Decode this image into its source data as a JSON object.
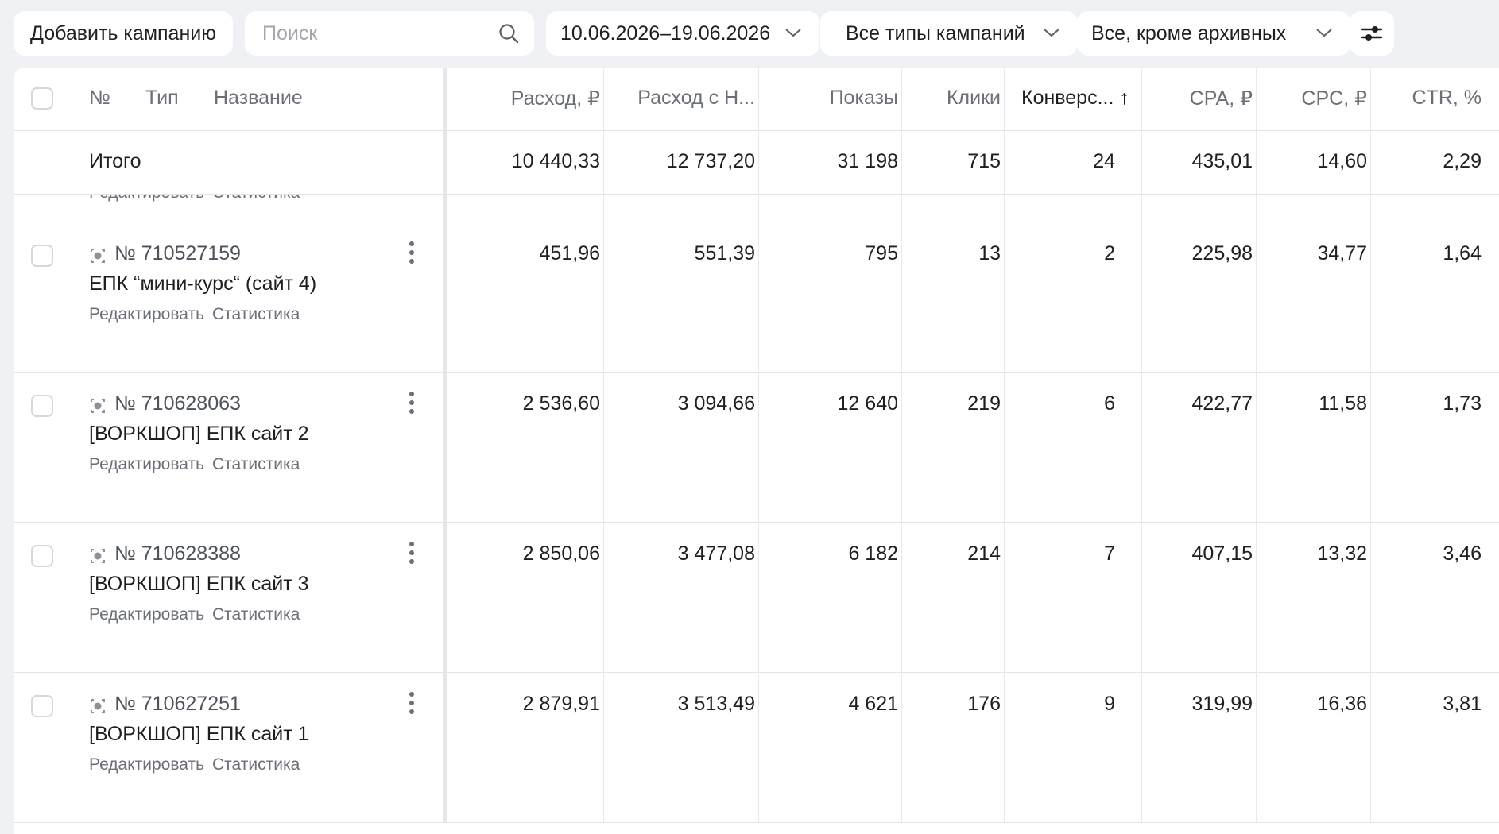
{
  "toolbar": {
    "add_label": "Добавить кампанию",
    "search_placeholder": "Поиск",
    "search_value": "",
    "date_range": "10.06.2026–19.06.2026",
    "campaign_types": "Все типы кампаний",
    "archive_filter": "Все, кроме архивных"
  },
  "table": {
    "headers": {
      "num": "№",
      "type": "Тип",
      "name": "Название",
      "spend": "Расход, ₽",
      "spend_vat": "Расход с Н...",
      "impressions": "Показы",
      "clicks": "Клики",
      "conversions": "Конверс...",
      "conversions_sort": "↑",
      "cpa": "CPA, ₽",
      "cpc": "CPC, ₽",
      "ctr": "CTR, %"
    },
    "total": {
      "label": "Итого",
      "spend": "10 440,33",
      "spend_vat": "12 737,20",
      "impressions": "31 198",
      "clicks": "715",
      "conversions": "24",
      "cpa": "435,01",
      "cpc": "14,60",
      "ctr": "2,29"
    },
    "partial_row": {
      "edit": "Редактировать",
      "stats": "Статистика"
    },
    "rows": [
      {
        "id": "№ 710527159",
        "name": "ЕПК “мини-курс“ (сайт 4)",
        "edit": "Редактировать",
        "stats": "Статистика",
        "spend": "451,96",
        "spend_vat": "551,39",
        "impressions": "795",
        "clicks": "13",
        "conversions": "2",
        "cpa": "225,98",
        "cpc": "34,77",
        "ctr": "1,64"
      },
      {
        "id": "№ 710628063",
        "name": "[ВОРКШОП] ЕПК сайт 2",
        "edit": "Редактировать",
        "stats": "Статистика",
        "spend": "2 536,60",
        "spend_vat": "3 094,66",
        "impressions": "12 640",
        "clicks": "219",
        "conversions": "6",
        "cpa": "422,77",
        "cpc": "11,58",
        "ctr": "1,73"
      },
      {
        "id": "№ 710628388",
        "name": "[ВОРКШОП] ЕПК сайт 3",
        "edit": "Редактировать",
        "stats": "Статистика",
        "spend": "2 850,06",
        "spend_vat": "3 477,08",
        "impressions": "6 182",
        "clicks": "214",
        "conversions": "7",
        "cpa": "407,15",
        "cpc": "13,32",
        "ctr": "3,46"
      },
      {
        "id": "№ 710627251",
        "name": "[ВОРКШОП] ЕПК сайт 1",
        "edit": "Редактировать",
        "stats": "Статистика",
        "spend": "2 879,91",
        "spend_vat": "3 513,49",
        "impressions": "4 621",
        "clicks": "176",
        "conversions": "9",
        "cpa": "319,99",
        "cpc": "16,36",
        "ctr": "3,81"
      }
    ]
  },
  "icons": {
    "search": "search-icon",
    "chevron": "chevron-down-icon",
    "settings": "sliders-icon",
    "campaign_type": "unified-campaign-icon",
    "row_menu": "more-vertical-icon"
  }
}
